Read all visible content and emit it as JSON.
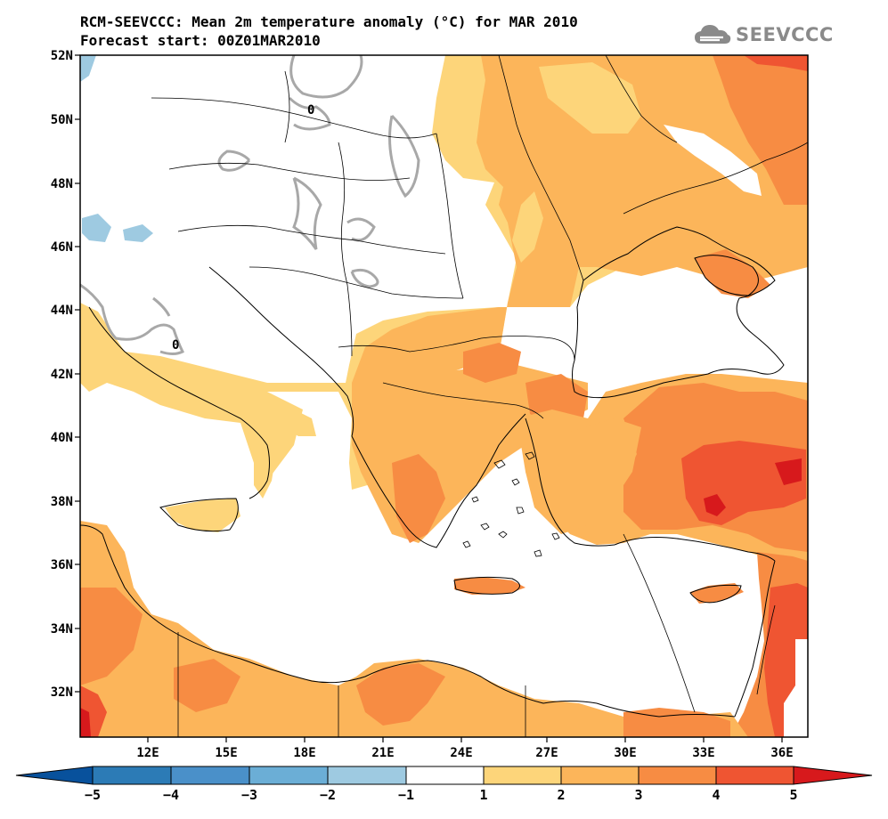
{
  "header": {
    "title_line1": "RCM-SEEVCCC: Mean 2m temperature anomaly (°C) for MAR 2010",
    "title_line2": "Forecast start: 00Z01MAR2010",
    "brand": "SEEVCCC"
  },
  "map": {
    "lat_labels": [
      "52N",
      "50N",
      "48N",
      "46N",
      "44N",
      "42N",
      "40N",
      "38N",
      "36N",
      "34N",
      "32N"
    ],
    "lon_labels": [
      "12E",
      "15E",
      "18E",
      "21E",
      "24E",
      "27E",
      "30E",
      "33E",
      "36E"
    ],
    "contour_label": "0",
    "anomaly_classes": [
      {
        "range": "1 to 2",
        "color": "#fdd57a"
      },
      {
        "range": "2 to 3",
        "color": "#fcb55a"
      },
      {
        "range": "3 to 4",
        "color": "#f78c43"
      },
      {
        "range": "4 to 5",
        "color": "#ef5532"
      },
      {
        "range": "> 5",
        "color": "#d7191c"
      },
      {
        "range": "-2 to -1",
        "color": "#9ecae1"
      }
    ]
  },
  "colorbar": {
    "ticks": [
      "−5",
      "−4",
      "−3",
      "−2",
      "−1",
      "1",
      "2",
      "3",
      "4",
      "5"
    ],
    "colors": [
      "#08519c",
      "#2c7bb6",
      "#4a90c9",
      "#6baed6",
      "#9ecae1",
      "#ffffff",
      "#fdd57a",
      "#fcb55a",
      "#f78c43",
      "#ef5532",
      "#d7191c",
      "#c51b1b"
    ]
  }
}
